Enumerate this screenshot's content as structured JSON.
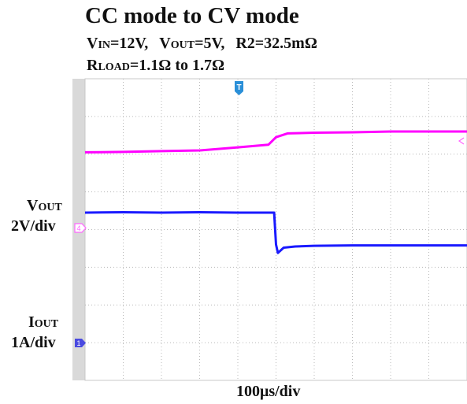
{
  "header": {
    "title": "CC mode to CV mode",
    "vin_sym": "V",
    "vin_sub": "IN",
    "vin_val": "=12V,",
    "vout_sym": "V",
    "vout_sub": "OUT",
    "vout_val": "=5V,",
    "r2": "R2=32.5mΩ",
    "rload_sym": "R",
    "rload_sub": "LOAD",
    "rload_val": "=1.1Ω to 1.7Ω"
  },
  "channels": {
    "vout_sym": "V",
    "vout_sub": "OUT",
    "vout_scale": "2V/div",
    "iout_sym": "I",
    "iout_sub": "OUT",
    "iout_scale": "1A/div",
    "vout_marker": "4",
    "iout_marker": "1",
    "trigger_marker": "T"
  },
  "chart_data": {
    "type": "line",
    "xlabel": "100μs/div",
    "x_divisions": 10,
    "y_divisions": 8,
    "grid": true,
    "x_unit": "div",
    "series": [
      {
        "color": "#ff00ff",
        "x": [
          0,
          1,
          2,
          3,
          4,
          4.8,
          5.0,
          5.3,
          6,
          7,
          8,
          9,
          10
        ],
        "y": [
          6.05,
          6.06,
          6.08,
          6.1,
          6.18,
          6.25,
          6.45,
          6.55,
          6.57,
          6.58,
          6.6,
          6.6,
          6.6
        ]
      },
      {
        "color": "#1a1aff",
        "x": [
          0,
          1,
          2,
          3,
          4,
          4.95,
          5.0,
          5.05,
          5.2,
          5.5,
          6,
          7,
          8,
          9,
          10
        ],
        "y": [
          4.45,
          4.46,
          4.45,
          4.46,
          4.45,
          4.45,
          3.6,
          3.38,
          3.52,
          3.55,
          3.57,
          3.58,
          3.58,
          3.58,
          3.58
        ]
      }
    ]
  },
  "colors": {
    "grid": "#b8b8b8",
    "left_strip": "#d9d9d9",
    "vout_marker": "#ff66ff",
    "iout_marker": "#4a4ae0",
    "trigger_marker": "#2a8fd8"
  }
}
